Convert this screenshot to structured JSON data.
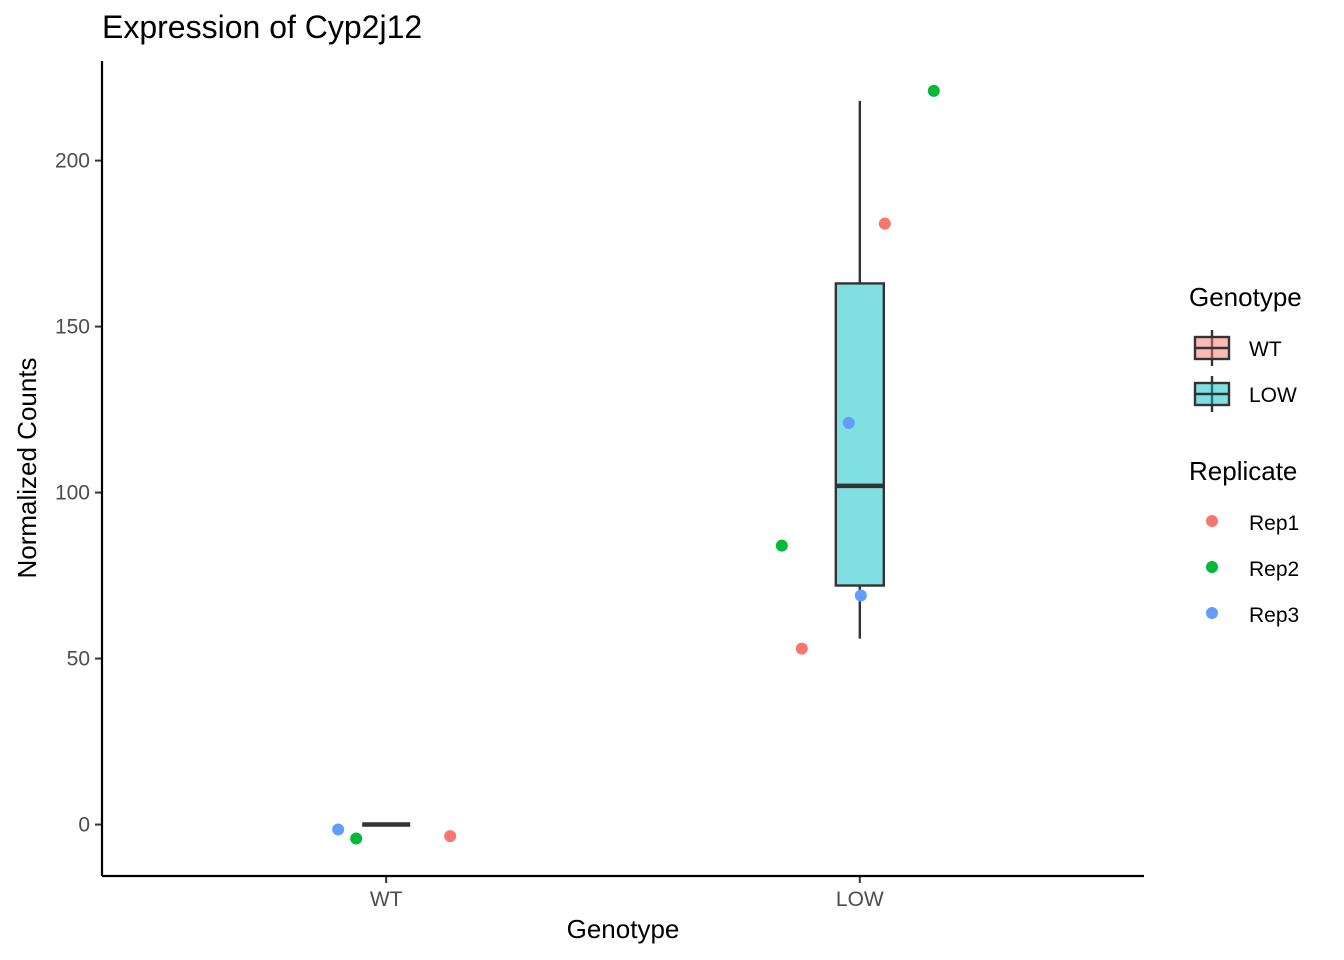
{
  "chart_data": {
    "type": "box",
    "title": "Expression of Cyp2j12",
    "xlabel": "Genotype",
    "ylabel": "Normalized Counts",
    "categories": [
      "WT",
      "LOW"
    ],
    "ylim": [
      -15.5,
      230
    ],
    "yticks": [
      0,
      50,
      100,
      150,
      200
    ],
    "grid": false,
    "boxes": [
      {
        "category": "WT",
        "fill": "#F8766D",
        "min": 0,
        "q1": 0,
        "median": 0,
        "q3": 0,
        "max": 0
      },
      {
        "category": "LOW",
        "fill": "#00BFC4",
        "min": 56,
        "q1": 72,
        "median": 102,
        "q3": 163,
        "max": 218
      }
    ],
    "series": [
      {
        "name": "Rep1",
        "color": "#F8766D",
        "points": [
          {
            "category": "WT",
            "value": -3.5
          },
          {
            "category": "LOW",
            "value": 53
          },
          {
            "category": "LOW",
            "value": 181
          }
        ]
      },
      {
        "name": "Rep2",
        "color": "#00BA38",
        "points": [
          {
            "category": "WT",
            "value": -4.2
          },
          {
            "category": "LOW",
            "value": 84
          },
          {
            "category": "LOW",
            "value": 221
          }
        ]
      },
      {
        "name": "Rep3",
        "color": "#619CFF",
        "points": [
          {
            "category": "WT",
            "value": -1.5
          },
          {
            "category": "LOW",
            "value": 121
          },
          {
            "category": "LOW",
            "value": 69
          }
        ]
      }
    ],
    "legends": [
      {
        "title": "Genotype",
        "kind": "box",
        "items": [
          {
            "label": "WT",
            "color": "#F8766D"
          },
          {
            "label": "LOW",
            "color": "#00BFC4"
          }
        ]
      },
      {
        "title": "Replicate",
        "kind": "point",
        "items": [
          {
            "label": "Rep1",
            "color": "#F8766D"
          },
          {
            "label": "Rep2",
            "color": "#00BA38"
          },
          {
            "label": "Rep3",
            "color": "#619CFF"
          }
        ]
      }
    ],
    "legend_position": "right"
  }
}
